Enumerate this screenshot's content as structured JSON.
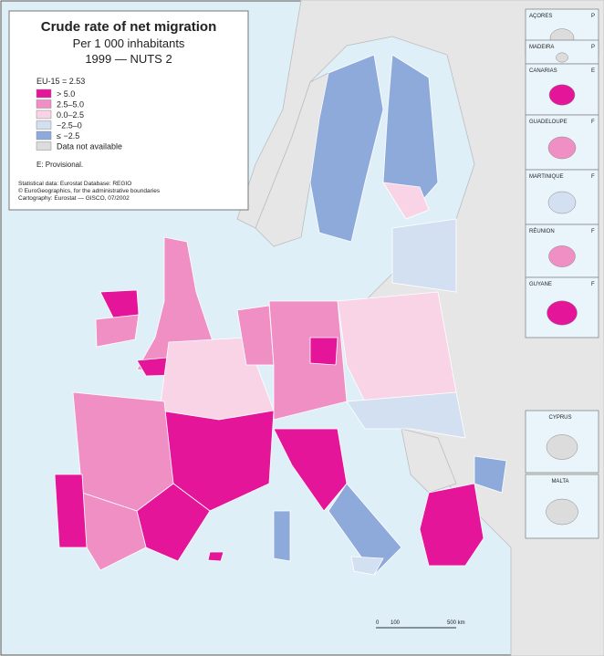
{
  "header": {
    "title": "Crude rate of net migration",
    "subtitle": "Per 1 000 inhabitants",
    "period": "1999 — NUTS 2"
  },
  "legend": {
    "title": "EU-15 = 2.53",
    "items": [
      {
        "label": "> 5.0",
        "color": "#e5159a"
      },
      {
        "label": "2.5–5.0",
        "color": "#ef8fc3"
      },
      {
        "label": "0.0–2.5",
        "color": "#f9d3e6"
      },
      {
        "label": "−2.5–0",
        "color": "#d3e0f2"
      },
      {
        "label": "≤ −2.5",
        "color": "#8eaadb"
      },
      {
        "label": "Data not available",
        "color": "#dcdcdc"
      }
    ],
    "note": "E: Provisional."
  },
  "sources": [
    "Statistical data: Eurostat Database: REGIO",
    "© EuroGeographics, for the administrative boundaries",
    "Cartography: Eurostat — GISCO, 07/2002"
  ],
  "insets": [
    {
      "name": "AÇORES",
      "country": "P"
    },
    {
      "name": "MADEIRA",
      "country": "P"
    },
    {
      "name": "CANARIAS",
      "country": "E"
    },
    {
      "name": "GUADELOUPE",
      "country": "F"
    },
    {
      "name": "MARTINIQUE",
      "country": "F"
    },
    {
      "name": "RÉUNION",
      "country": "F"
    },
    {
      "name": "GUYANE",
      "country": "F"
    },
    {
      "name": "CYPRUS"
    },
    {
      "name": "MALTA"
    }
  ],
  "scale": [
    "0",
    "100",
    "500 km"
  ]
}
